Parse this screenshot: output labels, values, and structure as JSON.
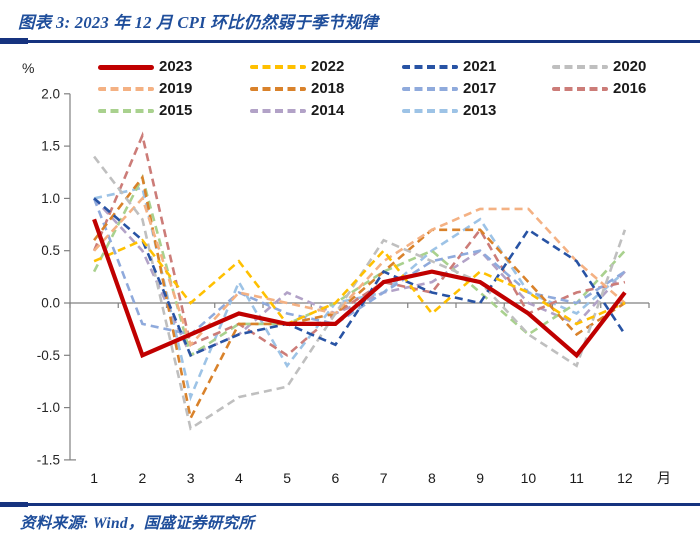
{
  "header": {
    "title": "图表 3: 2023 年 12 月 CPI 环比仍然弱于季节规律"
  },
  "footer": {
    "source": "资料来源: Wind，国盛证券研究所"
  },
  "colors": {
    "accent_blue_text": "#1F4E9B",
    "rule_navy": "#16337F",
    "axis_gray": "#808080",
    "tick_text": "#262626",
    "series_2023_red": "#C00000"
  },
  "chart_data": {
    "type": "line",
    "title": "",
    "ylabel": "%",
    "xlabel": "月",
    "grid": false,
    "legend_position": "top",
    "ylim": [
      -1.5,
      2.0
    ],
    "ytick_labels": [
      "2.0",
      "1.5",
      "1.0",
      "0.5",
      "0.0",
      "-0.5",
      "-1.0",
      "-1.5"
    ],
    "yticks": [
      2.0,
      1.5,
      1.0,
      0.5,
      0.0,
      -0.5,
      -1.0,
      -1.5
    ],
    "categories": [
      "1",
      "2",
      "3",
      "4",
      "5",
      "6",
      "7",
      "8",
      "9",
      "10",
      "11",
      "12"
    ],
    "series": [
      {
        "name": "2023",
        "color": "#C00000",
        "style": "solid",
        "values": [
          0.8,
          -0.5,
          -0.3,
          -0.1,
          -0.2,
          -0.2,
          0.2,
          0.3,
          0.2,
          -0.1,
          -0.5,
          0.1
        ]
      },
      {
        "name": "2022",
        "color": "#FFC000",
        "style": "dashed",
        "values": [
          0.4,
          0.6,
          0.0,
          0.4,
          -0.2,
          0.0,
          0.5,
          -0.1,
          0.3,
          0.1,
          -0.2,
          0.0
        ]
      },
      {
        "name": "2021",
        "color": "#2853A4",
        "style": "dashed",
        "values": [
          1.0,
          0.6,
          -0.5,
          -0.3,
          -0.2,
          -0.4,
          0.3,
          0.1,
          0.0,
          0.7,
          0.4,
          -0.3
        ]
      },
      {
        "name": "2020",
        "color": "#BFBFBF",
        "style": "dashed",
        "values": [
          1.4,
          0.8,
          -1.2,
          -0.9,
          -0.8,
          -0.1,
          0.6,
          0.4,
          0.2,
          -0.3,
          -0.6,
          0.7
        ]
      },
      {
        "name": "2019",
        "color": "#F4B183",
        "style": "dashed",
        "values": [
          0.5,
          1.0,
          -0.4,
          0.1,
          0.0,
          -0.1,
          0.4,
          0.7,
          0.9,
          0.9,
          0.4,
          0.0
        ]
      },
      {
        "name": "2018",
        "color": "#D9822B",
        "style": "dashed",
        "values": [
          0.6,
          1.2,
          -1.1,
          -0.2,
          -0.2,
          -0.1,
          0.3,
          0.7,
          0.7,
          0.2,
          -0.3,
          0.0
        ]
      },
      {
        "name": "2017",
        "color": "#8FAADC",
        "style": "dashed",
        "values": [
          1.0,
          -0.2,
          -0.3,
          0.1,
          -0.1,
          -0.2,
          0.1,
          0.4,
          0.5,
          0.1,
          0.0,
          0.3
        ]
      },
      {
        "name": "2016",
        "color": "#CC7C78",
        "style": "dashed",
        "values": [
          0.5,
          1.6,
          -0.4,
          -0.2,
          -0.5,
          -0.1,
          0.2,
          0.1,
          0.7,
          -0.1,
          0.1,
          0.2
        ]
      },
      {
        "name": "2015",
        "color": "#A9D18E",
        "style": "dashed",
        "values": [
          0.3,
          1.2,
          -0.5,
          -0.2,
          -0.2,
          0.0,
          0.3,
          0.5,
          0.1,
          -0.3,
          0.0,
          0.5
        ]
      },
      {
        "name": "2014",
        "color": "#B2A2C7",
        "style": "dashed",
        "values": [
          1.0,
          0.5,
          -0.5,
          -0.3,
          0.1,
          -0.1,
          0.1,
          0.2,
          0.5,
          0.0,
          -0.2,
          0.3
        ]
      },
      {
        "name": "2013",
        "color": "#9DC3E6",
        "style": "dashed",
        "values": [
          1.0,
          1.1,
          -0.9,
          0.2,
          -0.6,
          0.0,
          0.1,
          0.5,
          0.8,
          0.1,
          -0.1,
          0.3
        ]
      }
    ]
  }
}
